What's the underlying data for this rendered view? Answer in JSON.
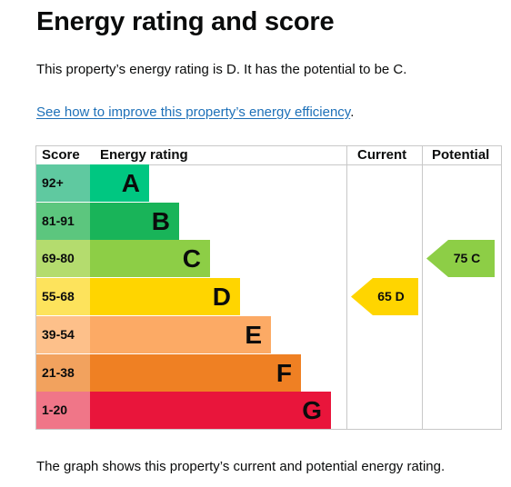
{
  "page": {
    "title": "Energy rating and score",
    "summary": "This property’s energy rating is D. It has the potential to be C.",
    "improve_link": "See how to improve this property’s energy efficiency",
    "improve_link_suffix": ".",
    "footer": "The graph shows this property’s current and potential energy rating."
  },
  "chart": {
    "headers": {
      "score": "Score",
      "rating": "Energy rating",
      "current": "Current",
      "potential": "Potential"
    },
    "bands": [
      {
        "score": "92+",
        "letter": "A",
        "score_color": "#5fc9a0",
        "band_color": "#00c781"
      },
      {
        "score": "81-91",
        "letter": "B",
        "score_color": "#5cc67e",
        "band_color": "#19b459"
      },
      {
        "score": "69-80",
        "letter": "C",
        "score_color": "#b4dc6e",
        "band_color": "#8dce46"
      },
      {
        "score": "55-68",
        "letter": "D",
        "score_color": "#fde35c",
        "band_color": "#ffd500"
      },
      {
        "score": "39-54",
        "letter": "E",
        "score_color": "#fdc08a",
        "band_color": "#fcaa65"
      },
      {
        "score": "21-38",
        "letter": "F",
        "score_color": "#f2a25e",
        "band_color": "#ef8023"
      },
      {
        "score": "1-20",
        "letter": "G",
        "score_color": "#f07688",
        "band_color": "#e9153b"
      }
    ],
    "current": {
      "label": "65 D",
      "band": "D",
      "color": "#ffd500"
    },
    "potential": {
      "label": "75 C",
      "band": "C",
      "color": "#8dce46"
    }
  },
  "chart_data": {
    "type": "bar",
    "categories": [
      "A",
      "B",
      "C",
      "D",
      "E",
      "F",
      "G"
    ],
    "score_ranges": [
      "92+",
      "81-91",
      "69-80",
      "55-68",
      "39-54",
      "21-38",
      "1-20"
    ],
    "current": {
      "score": 65,
      "rating": "D"
    },
    "potential": {
      "score": 75,
      "rating": "C"
    }
  }
}
